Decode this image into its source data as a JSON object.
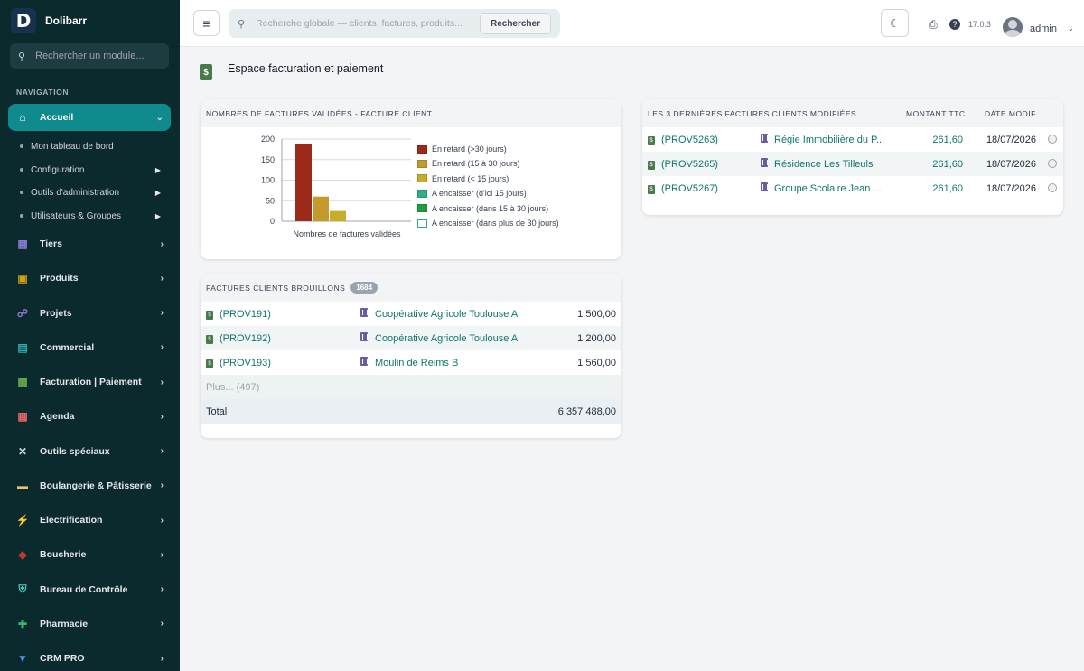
{
  "app": {
    "name": "Dolibarr",
    "logo_letter": "D"
  },
  "sidebar": {
    "search_placeholder": "Rechercher un module...",
    "nav_title": "NAVIGATION",
    "active": {
      "label": "Accueil",
      "icon": "home-icon"
    },
    "sub_items": [
      {
        "label": "Mon tableau de bord",
        "has_arrow": false
      },
      {
        "label": "Configuration",
        "has_arrow": true
      },
      {
        "label": "Outils d'administration",
        "has_arrow": true
      },
      {
        "label": "Utilisateurs & Groupes",
        "has_arrow": true
      }
    ],
    "items": [
      {
        "label": "Tiers",
        "icon": "building-icon"
      },
      {
        "label": "Produits",
        "icon": "box-icon"
      },
      {
        "label": "Projets",
        "icon": "project-icon"
      },
      {
        "label": "Commercial",
        "icon": "briefcase-icon"
      },
      {
        "label": "Facturation | Paiement",
        "icon": "invoice-icon"
      },
      {
        "label": "Agenda",
        "icon": "calendar-icon"
      },
      {
        "label": "Outils spéciaux",
        "icon": "tools-icon"
      },
      {
        "label": "Boulangerie & Pâtisserie",
        "icon": "bread-icon"
      },
      {
        "label": "Electrification",
        "icon": "bolt-icon"
      },
      {
        "label": "Boucherie",
        "icon": "meat-icon"
      },
      {
        "label": "Bureau de Contrôle",
        "icon": "shield-icon"
      },
      {
        "label": "Pharmacie",
        "icon": "cross-icon"
      },
      {
        "label": "CRM PRO",
        "icon": "funnel-icon"
      }
    ]
  },
  "topbar": {
    "search_placeholder": "Recherche globale — clients, factures, produits...",
    "search_button": "Rechercher",
    "version": "17.0.3",
    "user": "admin"
  },
  "page": {
    "title": "Espace facturation et paiement"
  },
  "chart_card": {
    "title": "Nombres de factures validées - facture client",
    "chart_data": {
      "type": "bar",
      "categories": [
        "Nombres de factures validées"
      ],
      "xlabel": "Nombres de factures validées",
      "ylim": [
        0,
        200
      ],
      "yticks": [
        0,
        50,
        100,
        150,
        200
      ],
      "grid": true,
      "legend_position": "right",
      "series": [
        {
          "name": "En retard (>30 jours)",
          "values": [
            187
          ],
          "color": "#9c2a1a"
        },
        {
          "name": "En retard (15 à 30 jours)",
          "values": [
            60
          ],
          "color": "#c49a2c"
        },
        {
          "name": "En retard (< 15 jours)",
          "values": [
            25
          ],
          "color": "#c8ad2a"
        },
        {
          "name": "A encaisser (d'ici 15 jours)",
          "values": [
            0
          ],
          "color": "#2bb08a"
        },
        {
          "name": "A encaisser (dans 15 à 30 jours)",
          "values": [
            0
          ],
          "color": "#1e9e3e"
        },
        {
          "name": "A encaisser (dans plus de 30 jours)",
          "values": [
            0
          ],
          "color": "#ffffff"
        }
      ]
    }
  },
  "drafts_card": {
    "title": "Factures clients brouillons",
    "count": "1684",
    "rows": [
      {
        "ref": "(PROV191)",
        "customer": "Coopérative Agricole Toulouse A",
        "amount": "1 500,00"
      },
      {
        "ref": "(PROV192)",
        "customer": "Coopérative Agricole Toulouse A",
        "amount": "1 200,00"
      },
      {
        "ref": "(PROV193)",
        "customer": "Moulin de Reims B",
        "amount": "1 560,00"
      }
    ],
    "more": "Plus... (497)",
    "total_label": "Total",
    "total_value": "6 357 488,00"
  },
  "recent_card": {
    "title": "Les 3 dernières factures clients modifiées",
    "col_amount": "Montant TTC",
    "col_date": "Date modif.",
    "rows": [
      {
        "ref": "(PROV5263)",
        "customer": "Régie Immobilière du P...",
        "amount": "261,60",
        "date": "18/07/2026"
      },
      {
        "ref": "(PROV5265)",
        "customer": "Résidence Les Tilleuls",
        "amount": "261,60",
        "date": "18/07/2026"
      },
      {
        "ref": "(PROV5267)",
        "customer": "Groupe Scolaire Jean ...",
        "amount": "261,60",
        "date": "18/07/2026"
      }
    ]
  }
}
